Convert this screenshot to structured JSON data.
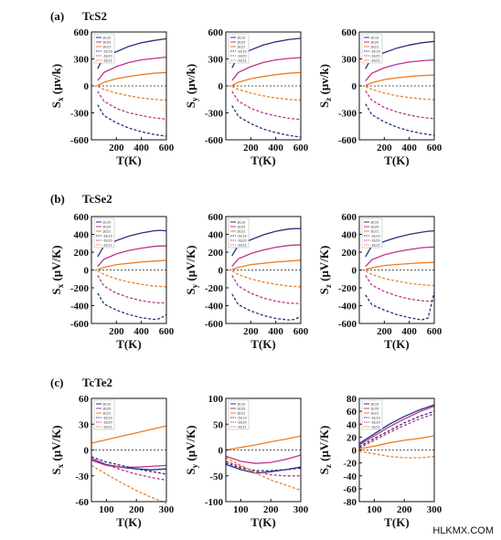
{
  "watermark": "HLKMX.COM",
  "colors": {
    "s1": "#27307f",
    "s2": "#c0328a",
    "s3": "#ef7d22",
    "s4": "#27307f",
    "s5": "#c0328a",
    "s6": "#ef7d22",
    "zero": "#222222"
  },
  "chart_data": [
    {
      "panel": "(a)",
      "row_title": "TcS2",
      "type": "line",
      "xlabel": "T(K)",
      "ylabel": "Sx (μv/k)",
      "ylabel_main": "S",
      "ylabel_sub": "x",
      "ylabel_unit": "(μv/k)",
      "xlim": [
        0,
        600
      ],
      "ylim": [
        -600,
        600
      ],
      "xticks": [
        200,
        400,
        600
      ],
      "yticks": [
        -600,
        -300,
        0,
        300,
        600
      ],
      "legend": [
        "1E19",
        "1E20",
        "1E21",
        "-1E19",
        "-1E20",
        "-1E21"
      ],
      "x": [
        50,
        100,
        200,
        300,
        400,
        500,
        600
      ],
      "series": [
        {
          "color_key": "s1",
          "dashed": false,
          "values": [
            190,
            330,
            380,
            440,
            480,
            505,
            525
          ]
        },
        {
          "color_key": "s2",
          "dashed": false,
          "values": [
            60,
            150,
            215,
            260,
            290,
            305,
            320
          ]
        },
        {
          "color_key": "s3",
          "dashed": false,
          "values": [
            5,
            40,
            80,
            105,
            125,
            140,
            150
          ]
        },
        {
          "color_key": "s4",
          "dashed": true,
          "values": [
            -210,
            -330,
            -410,
            -470,
            -510,
            -540,
            -560
          ]
        },
        {
          "color_key": "s5",
          "dashed": true,
          "values": [
            -60,
            -170,
            -250,
            -300,
            -330,
            -355,
            -370
          ]
        },
        {
          "color_key": "s6",
          "dashed": true,
          "values": [
            -5,
            -40,
            -80,
            -110,
            -135,
            -150,
            -160
          ]
        }
      ]
    },
    {
      "panel": "",
      "row_title": "",
      "type": "line",
      "xlabel": "T(K)",
      "ylabel": "Sy (μv/k)",
      "ylabel_main": "S",
      "ylabel_sub": "y",
      "ylabel_unit": "(μv/k)",
      "xlim": [
        0,
        600
      ],
      "ylim": [
        -600,
        600
      ],
      "xticks": [
        200,
        400,
        600
      ],
      "yticks": [
        -600,
        -300,
        0,
        300,
        600
      ],
      "legend": [
        "1E19",
        "1E20",
        "1E21",
        "-1E19",
        "-1E20",
        "-1E21"
      ],
      "x": [
        50,
        100,
        200,
        300,
        400,
        500,
        600
      ],
      "series": [
        {
          "color_key": "s1",
          "dashed": false,
          "values": [
            200,
            340,
            400,
            455,
            490,
            515,
            530
          ]
        },
        {
          "color_key": "s2",
          "dashed": false,
          "values": [
            60,
            150,
            215,
            260,
            290,
            305,
            315
          ]
        },
        {
          "color_key": "s3",
          "dashed": false,
          "values": [
            5,
            40,
            80,
            105,
            125,
            140,
            150
          ]
        },
        {
          "color_key": "s4",
          "dashed": true,
          "values": [
            -220,
            -340,
            -420,
            -480,
            -520,
            -550,
            -570
          ]
        },
        {
          "color_key": "s5",
          "dashed": true,
          "values": [
            -60,
            -170,
            -250,
            -300,
            -335,
            -360,
            -375
          ]
        },
        {
          "color_key": "s6",
          "dashed": true,
          "values": [
            -5,
            -40,
            -80,
            -110,
            -135,
            -150,
            -160
          ]
        }
      ]
    },
    {
      "panel": "",
      "row_title": "",
      "type": "line",
      "xlabel": "T(K)",
      "ylabel": "Sz (μv/k)",
      "ylabel_main": "S",
      "ylabel_sub": "z",
      "ylabel_unit": "(μv/k)",
      "xlim": [
        0,
        600
      ],
      "ylim": [
        -600,
        600
      ],
      "xticks": [
        200,
        400,
        600
      ],
      "yticks": [
        -600,
        -300,
        0,
        300,
        600
      ],
      "legend": [
        "1E19",
        "1E20",
        "1E21",
        "-1E19",
        "-1E20",
        "-1E21"
      ],
      "x": [
        50,
        100,
        200,
        300,
        400,
        500,
        600
      ],
      "series": [
        {
          "color_key": "s1",
          "dashed": false,
          "values": [
            190,
            320,
            370,
            420,
            455,
            480,
            495
          ]
        },
        {
          "color_key": "s2",
          "dashed": false,
          "values": [
            55,
            140,
            200,
            240,
            265,
            280,
            290
          ]
        },
        {
          "color_key": "s3",
          "dashed": false,
          "values": [
            5,
            35,
            70,
            90,
            105,
            115,
            120
          ]
        },
        {
          "color_key": "s4",
          "dashed": true,
          "values": [
            -200,
            -320,
            -400,
            -460,
            -500,
            -530,
            -550
          ]
        },
        {
          "color_key": "s5",
          "dashed": true,
          "values": [
            -55,
            -160,
            -240,
            -290,
            -325,
            -350,
            -365
          ]
        },
        {
          "color_key": "s6",
          "dashed": true,
          "values": [
            -5,
            -40,
            -80,
            -110,
            -130,
            -145,
            -155
          ]
        }
      ]
    },
    {
      "panel": "(b)",
      "row_title": "TcSe2",
      "type": "line",
      "xlabel": "T(K)",
      "ylabel": "Sx (μV/K)",
      "ylabel_main": "S",
      "ylabel_sub": "x",
      "ylabel_unit": "(μV/K)",
      "xlim": [
        0,
        600
      ],
      "ylim": [
        -600,
        600
      ],
      "xticks": [
        200,
        400,
        600
      ],
      "yticks": [
        -600,
        -400,
        -200,
        0,
        200,
        400,
        600
      ],
      "legend": [
        "1E19",
        "1E20",
        "1E21",
        "-1E19",
        "-1E20",
        "-1E21"
      ],
      "x": [
        50,
        100,
        200,
        300,
        400,
        500,
        550,
        600
      ],
      "series": [
        {
          "color_key": "s1",
          "dashed": false,
          "values": [
            150,
            270,
            330,
            380,
            415,
            440,
            445,
            440
          ]
        },
        {
          "color_key": "s2",
          "dashed": false,
          "values": [
            40,
            120,
            180,
            220,
            245,
            265,
            270,
            270
          ]
        },
        {
          "color_key": "s3",
          "dashed": false,
          "values": [
            5,
            30,
            60,
            75,
            90,
            100,
            105,
            110
          ]
        },
        {
          "color_key": "s4",
          "dashed": true,
          "values": [
            -260,
            -380,
            -450,
            -500,
            -535,
            -555,
            -545,
            -500
          ]
        },
        {
          "color_key": "s5",
          "dashed": true,
          "values": [
            -60,
            -180,
            -260,
            -310,
            -345,
            -365,
            -370,
            -365
          ]
        },
        {
          "color_key": "s6",
          "dashed": true,
          "values": [
            -10,
            -50,
            -100,
            -135,
            -160,
            -180,
            -185,
            -190
          ]
        }
      ]
    },
    {
      "panel": "",
      "row_title": "",
      "type": "line",
      "xlabel": "T(K)",
      "ylabel": "Sy (μV/K)",
      "ylabel_main": "S",
      "ylabel_sub": "y",
      "ylabel_unit": "(μV/K)",
      "xlim": [
        0,
        600
      ],
      "ylim": [
        -600,
        600
      ],
      "xticks": [
        200,
        400,
        600
      ],
      "yticks": [
        -600,
        -400,
        -200,
        0,
        200,
        400,
        600
      ],
      "legend": [
        "1E19",
        "1E20",
        "1E21",
        "-1E19",
        "-1E20",
        "-1E21"
      ],
      "x": [
        50,
        100,
        200,
        300,
        400,
        500,
        550,
        600
      ],
      "series": [
        {
          "color_key": "s1",
          "dashed": false,
          "values": [
            160,
            280,
            340,
            395,
            435,
            460,
            465,
            465
          ]
        },
        {
          "color_key": "s2",
          "dashed": false,
          "values": [
            40,
            125,
            185,
            225,
            255,
            275,
            280,
            282
          ]
        },
        {
          "color_key": "s3",
          "dashed": false,
          "values": [
            5,
            30,
            60,
            75,
            90,
            100,
            105,
            110
          ]
        },
        {
          "color_key": "s4",
          "dashed": true,
          "values": [
            -270,
            -390,
            -460,
            -510,
            -545,
            -560,
            -555,
            -520
          ]
        },
        {
          "color_key": "s5",
          "dashed": true,
          "values": [
            -60,
            -180,
            -260,
            -315,
            -350,
            -370,
            -375,
            -375
          ]
        },
        {
          "color_key": "s6",
          "dashed": true,
          "values": [
            -10,
            -50,
            -100,
            -135,
            -160,
            -180,
            -185,
            -190
          ]
        }
      ]
    },
    {
      "panel": "",
      "row_title": "",
      "type": "line",
      "xlabel": "T(K)",
      "ylabel": "Sz (μV/K)",
      "ylabel_main": "S",
      "ylabel_sub": "z",
      "ylabel_unit": "(μV/K)",
      "xlim": [
        0,
        600
      ],
      "ylim": [
        -600,
        600
      ],
      "xticks": [
        200,
        400,
        600
      ],
      "yticks": [
        -600,
        -400,
        -200,
        0,
        200,
        400,
        600
      ],
      "legend": [
        "1E19",
        "1E20",
        "1E21",
        "-1E19",
        "-1E20",
        "-1E21"
      ],
      "x": [
        50,
        100,
        200,
        300,
        400,
        500,
        550,
        600
      ],
      "series": [
        {
          "color_key": "s1",
          "dashed": false,
          "values": [
            150,
            270,
            320,
            365,
            400,
            425,
            435,
            440
          ]
        },
        {
          "color_key": "s2",
          "dashed": false,
          "values": [
            40,
            115,
            170,
            205,
            230,
            250,
            255,
            258
          ]
        },
        {
          "color_key": "s3",
          "dashed": false,
          "values": [
            5,
            25,
            50,
            62,
            72,
            80,
            83,
            85
          ]
        },
        {
          "color_key": "s4",
          "dashed": true,
          "values": [
            -280,
            -390,
            -450,
            -500,
            -535,
            -560,
            -540,
            -250
          ]
        },
        {
          "color_key": "s5",
          "dashed": true,
          "values": [
            -60,
            -170,
            -240,
            -290,
            -325,
            -345,
            -350,
            -345
          ]
        },
        {
          "color_key": "s6",
          "dashed": true,
          "values": [
            -10,
            -50,
            -95,
            -125,
            -150,
            -165,
            -170,
            -175
          ]
        }
      ]
    },
    {
      "panel": "(c)",
      "row_title": "TcTe2",
      "type": "line",
      "xlabel": "T(K)",
      "ylabel": "Sx (μV/K)",
      "ylabel_main": "S",
      "ylabel_sub": "x",
      "ylabel_unit": "(μV/K)",
      "xlim": [
        50,
        300
      ],
      "ylim": [
        -60,
        60
      ],
      "xticks": [
        100,
        200,
        300
      ],
      "yticks": [
        -60,
        -30,
        0,
        30,
        60
      ],
      "legend": [
        "1E19",
        "1E20",
        "1E21",
        "-1E19",
        "-1E20",
        "-1E21"
      ],
      "x": [
        50,
        100,
        150,
        200,
        250,
        300
      ],
      "series": [
        {
          "color_key": "s1",
          "dashed": false,
          "values": [
            -10,
            -17,
            -20,
            -22,
            -23,
            -22
          ]
        },
        {
          "color_key": "s2",
          "dashed": false,
          "values": [
            -12,
            -18,
            -20,
            -20,
            -19,
            -18
          ]
        },
        {
          "color_key": "s3",
          "dashed": false,
          "values": [
            8,
            12,
            16,
            20,
            24,
            28
          ]
        },
        {
          "color_key": "s4",
          "dashed": true,
          "values": [
            -8,
            -14,
            -18,
            -22,
            -25,
            -28
          ]
        },
        {
          "color_key": "s5",
          "dashed": true,
          "values": [
            -10,
            -17,
            -23,
            -28,
            -32,
            -35
          ]
        },
        {
          "color_key": "s6",
          "dashed": true,
          "values": [
            -18,
            -28,
            -38,
            -47,
            -55,
            -62
          ]
        }
      ]
    },
    {
      "panel": "",
      "row_title": "",
      "type": "line",
      "xlabel": "T(K)",
      "ylabel": "Sy (μV/K)",
      "ylabel_main": "S",
      "ylabel_sub": "y",
      "ylabel_unit": "(μV/K)",
      "xlim": [
        50,
        300
      ],
      "ylim": [
        -100,
        100
      ],
      "xticks": [
        100,
        200,
        300
      ],
      "yticks": [
        -100,
        -50,
        0,
        50,
        100
      ],
      "legend": [
        "1E19",
        "1E20",
        "1E21",
        "-1E19",
        "-1E20",
        "-1E21"
      ],
      "x": [
        50,
        100,
        150,
        200,
        250,
        300
      ],
      "series": [
        {
          "color_key": "s1",
          "dashed": false,
          "values": [
            -28,
            -38,
            -45,
            -42,
            -38,
            -33
          ]
        },
        {
          "color_key": "s2",
          "dashed": false,
          "values": [
            -12,
            -22,
            -26,
            -24,
            -18,
            -10
          ]
        },
        {
          "color_key": "s3",
          "dashed": false,
          "values": [
            0,
            5,
            10,
            16,
            21,
            27
          ]
        },
        {
          "color_key": "s4",
          "dashed": true,
          "values": [
            -25,
            -35,
            -40,
            -40,
            -38,
            -35
          ]
        },
        {
          "color_key": "s5",
          "dashed": true,
          "values": [
            -22,
            -32,
            -42,
            -48,
            -50,
            -50
          ]
        },
        {
          "color_key": "s6",
          "dashed": true,
          "values": [
            -15,
            -30,
            -45,
            -58,
            -68,
            -78
          ]
        }
      ]
    },
    {
      "panel": "",
      "row_title": "",
      "type": "line",
      "xlabel": "T(K)",
      "ylabel": "Sz (μV/K)",
      "ylabel_main": "S",
      "ylabel_sub": "z",
      "ylabel_unit": "(μV/K)",
      "xlim": [
        50,
        300
      ],
      "ylim": [
        -80,
        80
      ],
      "xticks": [
        100,
        200,
        300
      ],
      "yticks": [
        -80,
        -60,
        -40,
        -20,
        0,
        20,
        40,
        60,
        80
      ],
      "legend": [
        "1E19",
        "1E20",
        "1E21",
        "-1E19",
        "-1E20",
        "-1E21"
      ],
      "x": [
        50,
        100,
        150,
        200,
        250,
        300
      ],
      "series": [
        {
          "color_key": "s1",
          "dashed": false,
          "values": [
            10,
            25,
            40,
            52,
            62,
            70
          ]
        },
        {
          "color_key": "s2",
          "dashed": false,
          "values": [
            8,
            22,
            36,
            48,
            59,
            68
          ]
        },
        {
          "color_key": "s3",
          "dashed": false,
          "values": [
            2,
            6,
            11,
            15,
            18,
            22
          ]
        },
        {
          "color_key": "s4",
          "dashed": true,
          "values": [
            5,
            18,
            30,
            42,
            52,
            60
          ]
        },
        {
          "color_key": "s5",
          "dashed": true,
          "values": [
            3,
            15,
            27,
            38,
            48,
            56
          ]
        },
        {
          "color_key": "s6",
          "dashed": true,
          "values": [
            -2,
            -6,
            -10,
            -12,
            -12,
            -10
          ]
        }
      ]
    }
  ]
}
